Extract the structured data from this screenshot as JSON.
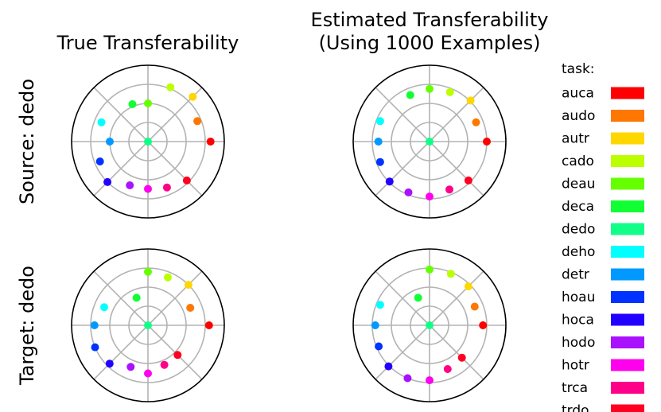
{
  "figure": {
    "col_titles": [
      "True Transferability",
      "Estimated Transferability",
      "(Using 1000 Examples)"
    ],
    "row_labels": [
      "Source: dedo",
      "Target: dedo"
    ]
  },
  "legend": {
    "title": "task:",
    "entries": [
      {
        "label": "auca",
        "color": "#ff0000"
      },
      {
        "label": "audo",
        "color": "#ff7700"
      },
      {
        "label": "autr",
        "color": "#ffd700"
      },
      {
        "label": "cado",
        "color": "#bbff00"
      },
      {
        "label": "deau",
        "color": "#66ff00"
      },
      {
        "label": "deca",
        "color": "#11ff33"
      },
      {
        "label": "dedo",
        "color": "#11ff88"
      },
      {
        "label": "deho",
        "color": "#00ffff"
      },
      {
        "label": "detr",
        "color": "#0099ff"
      },
      {
        "label": "hoau",
        "color": "#0033ff"
      },
      {
        "label": "hoca",
        "color": "#2200ff"
      },
      {
        "label": "hodo",
        "color": "#aa11ff"
      },
      {
        "label": "hotr",
        "color": "#ff00ee"
      },
      {
        "label": "trca",
        "color": "#ff0088"
      },
      {
        "label": "trdo",
        "color": "#ff0022"
      }
    ]
  },
  "chart_data": [
    {
      "type": "scatter",
      "projection": "polar",
      "panel": "True Transferability / Source: dedo",
      "rlim": [
        0,
        1
      ],
      "grid": true,
      "tasks": [
        "auca",
        "audo",
        "autr",
        "cado",
        "deau",
        "deca",
        "dedo",
        "deho",
        "detr",
        "hoau",
        "hoca",
        "hodo",
        "hotr",
        "trca",
        "trdo"
      ],
      "theta_deg": [
        0,
        22.5,
        45,
        67.5,
        90,
        112.5,
        0,
        157.5,
        180,
        202.5,
        225,
        247.5,
        270,
        292.5,
        315
      ],
      "r": [
        0.82,
        0.7,
        0.83,
        0.77,
        0.5,
        0.53,
        0.0,
        0.66,
        0.5,
        0.68,
        0.75,
        0.62,
        0.62,
        0.65,
        0.72
      ]
    },
    {
      "type": "scatter",
      "projection": "polar",
      "panel": "Estimated Transferability (Using 1000 Examples) / Source: dedo",
      "rlim": [
        0,
        1
      ],
      "grid": true,
      "tasks": [
        "auca",
        "audo",
        "autr",
        "cado",
        "deau",
        "deca",
        "dedo",
        "deho",
        "detr",
        "hoau",
        "hoca",
        "hodo",
        "hotr",
        "trca",
        "trdo"
      ],
      "theta_deg": [
        0,
        22.5,
        45,
        67.5,
        90,
        112.5,
        0,
        157.5,
        180,
        202.5,
        225,
        247.5,
        270,
        292.5,
        315
      ],
      "r": [
        0.75,
        0.66,
        0.76,
        0.7,
        0.69,
        0.66,
        0.0,
        0.7,
        0.67,
        0.7,
        0.74,
        0.72,
        0.72,
        0.68,
        0.72
      ]
    },
    {
      "type": "scatter",
      "projection": "polar",
      "panel": "True Transferability / Target: dedo",
      "rlim": [
        0,
        1
      ],
      "grid": true,
      "tasks": [
        "auca",
        "audo",
        "autr",
        "cado",
        "deau",
        "deca",
        "dedo",
        "deho",
        "detr",
        "hoau",
        "hoca",
        "hodo",
        "hotr",
        "trca",
        "trdo"
      ],
      "theta_deg": [
        0,
        22.5,
        45,
        67.5,
        90,
        112.5,
        0,
        157.5,
        180,
        202.5,
        225,
        247.5,
        270,
        292.5,
        315
      ],
      "r": [
        0.8,
        0.6,
        0.75,
        0.68,
        0.7,
        0.39,
        0.0,
        0.62,
        0.7,
        0.75,
        0.71,
        0.59,
        0.63,
        0.56,
        0.55
      ]
    },
    {
      "type": "scatter",
      "projection": "polar",
      "panel": "Estimated Transferability (Using 1000 Examples) / Target: dedo",
      "rlim": [
        0,
        1
      ],
      "grid": true,
      "tasks": [
        "auca",
        "audo",
        "autr",
        "cado",
        "deau",
        "deca",
        "dedo",
        "deho",
        "detr",
        "hoau",
        "hoca",
        "hodo",
        "hotr",
        "trca",
        "trdo"
      ],
      "theta_deg": [
        0,
        22.5,
        45,
        67.5,
        90,
        112.5,
        0,
        157.5,
        180,
        202.5,
        225,
        247.5,
        270,
        292.5,
        315
      ],
      "r": [
        0.7,
        0.64,
        0.72,
        0.73,
        0.73,
        0.39,
        0.0,
        0.7,
        0.71,
        0.72,
        0.76,
        0.75,
        0.72,
        0.62,
        0.6
      ]
    }
  ]
}
